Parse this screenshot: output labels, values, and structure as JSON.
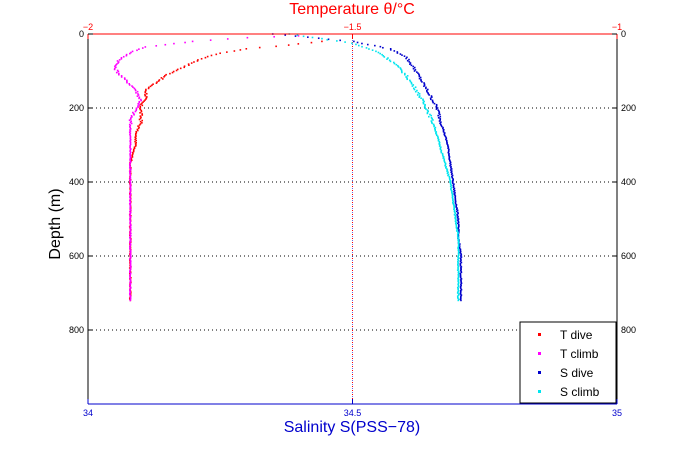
{
  "chart_data": {
    "type": "line",
    "title": "Temperature θ/°C",
    "xlabel": "Salinity S(PSS−78)",
    "ylabel": "Depth (m)",
    "top_axis": {
      "label": "Temperature θ/°C",
      "range": [
        -2,
        -1
      ],
      "ticks": [
        -2,
        -1.5,
        -1
      ],
      "tick_labels": [
        "−2",
        "−1.5",
        "−1"
      ]
    },
    "bottom_axis": {
      "label": "Salinity S(PSS−78)",
      "range": [
        34,
        35
      ],
      "ticks": [
        34,
        34.5,
        35
      ],
      "tick_labels": [
        "34",
        "34.5",
        "35"
      ]
    },
    "y_axis": {
      "range": [
        1000,
        0
      ],
      "reversed": true,
      "ticks": [
        0,
        200,
        400,
        600,
        800
      ],
      "tick_labels": [
        "0",
        "200",
        "400",
        "600",
        "800"
      ]
    },
    "grid": "dotted, at major ticks",
    "legend_position": "bottom-right",
    "series": [
      {
        "name": "T dive",
        "axis": "temperature",
        "color": "#ff0000",
        "points": [
          [
            -1.56,
            20
          ],
          [
            -1.62,
            30
          ],
          [
            -1.7,
            40
          ],
          [
            -1.76,
            55
          ],
          [
            -1.79,
            70
          ],
          [
            -1.82,
            90
          ],
          [
            -1.85,
            110
          ],
          [
            -1.87,
            130
          ],
          [
            -1.89,
            150
          ],
          [
            -1.89,
            170
          ],
          [
            -1.9,
            190
          ],
          [
            -1.9,
            210
          ],
          [
            -1.9,
            240
          ],
          [
            -1.91,
            270
          ],
          [
            -1.91,
            300
          ],
          [
            -1.92,
            350
          ],
          [
            -1.92,
            400
          ],
          [
            -1.92,
            450
          ],
          [
            -1.92,
            500
          ],
          [
            -1.92,
            550
          ],
          [
            -1.92,
            600
          ],
          [
            -1.92,
            650
          ],
          [
            -1.92,
            700
          ],
          [
            -1.92,
            720
          ]
        ]
      },
      {
        "name": "T climb",
        "axis": "temperature",
        "color": "#ff00ff",
        "points": [
          [
            -1.6,
            5
          ],
          [
            -1.7,
            10
          ],
          [
            -1.8,
            20
          ],
          [
            -1.89,
            35
          ],
          [
            -1.92,
            50
          ],
          [
            -1.94,
            70
          ],
          [
            -1.95,
            90
          ],
          [
            -1.94,
            110
          ],
          [
            -1.91,
            150
          ],
          [
            -1.9,
            180
          ],
          [
            -1.92,
            230
          ],
          [
            -1.92,
            280
          ],
          [
            -1.92,
            320
          ],
          [
            -1.92,
            380
          ],
          [
            -1.92,
            450
          ],
          [
            -1.92,
            500
          ],
          [
            -1.92,
            560
          ],
          [
            -1.92,
            620
          ],
          [
            -1.92,
            680
          ],
          [
            -1.92,
            720
          ]
        ]
      },
      {
        "name": "S dive",
        "axis": "salinity",
        "color": "#0000cc",
        "points": [
          [
            34.35,
            0
          ],
          [
            34.5,
            20
          ],
          [
            34.57,
            40
          ],
          [
            34.6,
            60
          ],
          [
            34.62,
            100
          ],
          [
            34.64,
            150
          ],
          [
            34.66,
            200
          ],
          [
            34.67,
            250
          ],
          [
            34.68,
            300
          ],
          [
            34.685,
            350
          ],
          [
            34.69,
            400
          ],
          [
            34.695,
            450
          ],
          [
            34.7,
            500
          ],
          [
            34.7,
            550
          ],
          [
            34.705,
            600
          ],
          [
            34.705,
            650
          ],
          [
            34.705,
            700
          ],
          [
            34.705,
            720
          ]
        ]
      },
      {
        "name": "S climb",
        "axis": "salinity",
        "color": "#00e5ee",
        "points": [
          [
            34.38,
            0
          ],
          [
            34.5,
            25
          ],
          [
            34.55,
            50
          ],
          [
            34.58,
            80
          ],
          [
            34.6,
            110
          ],
          [
            34.62,
            150
          ],
          [
            34.64,
            200
          ],
          [
            34.655,
            250
          ],
          [
            34.665,
            300
          ],
          [
            34.675,
            350
          ],
          [
            34.685,
            400
          ],
          [
            34.69,
            450
          ],
          [
            34.695,
            500
          ],
          [
            34.7,
            550
          ],
          [
            34.7,
            600
          ],
          [
            34.7,
            650
          ],
          [
            34.7,
            700
          ],
          [
            34.7,
            720
          ]
        ]
      }
    ]
  }
}
